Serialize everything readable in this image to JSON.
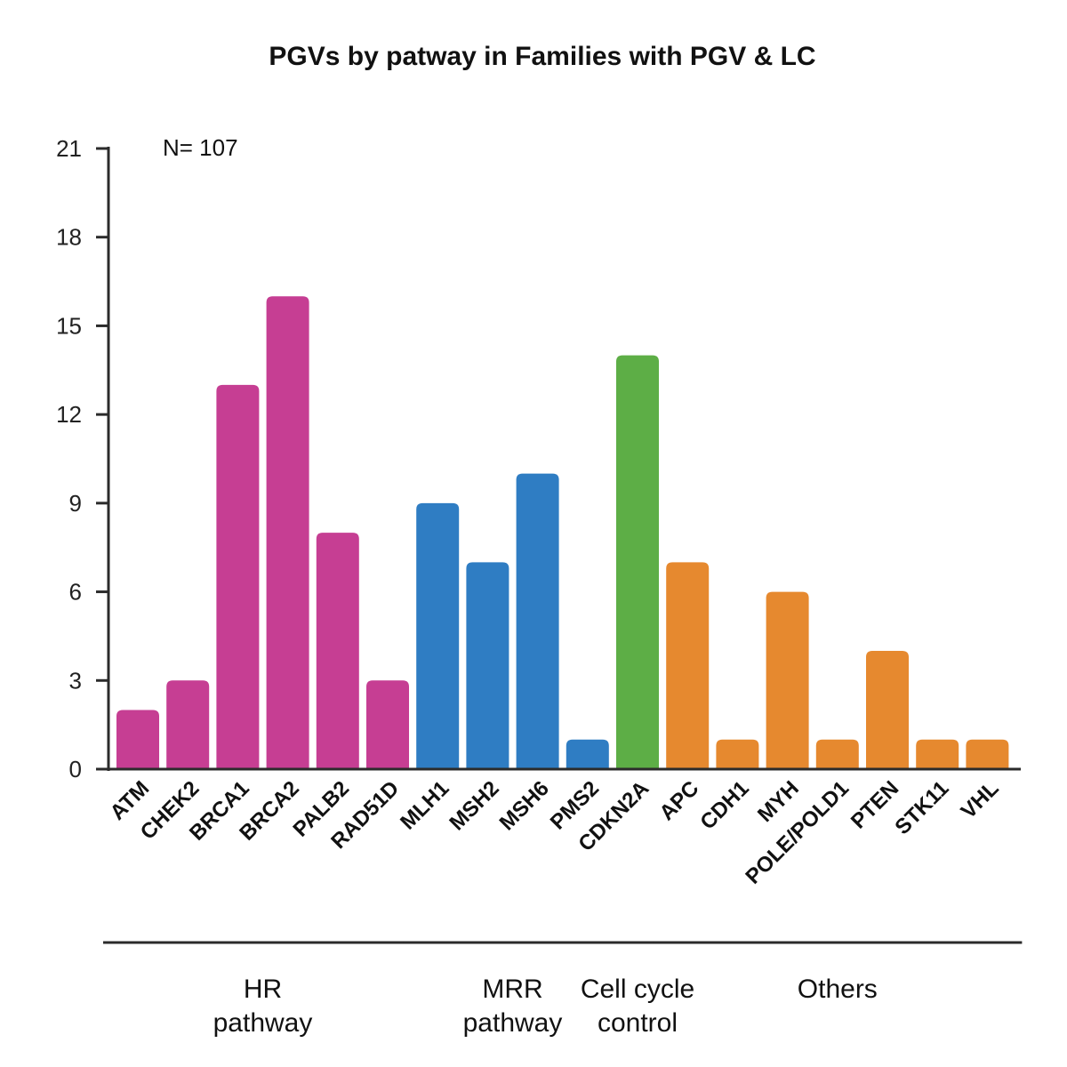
{
  "chart_data": {
    "type": "bar",
    "title": "PGVs by patway in Families with PGV & LC",
    "annotation": "N= 107",
    "xlabel": "",
    "ylabel": "",
    "ylim": [
      0,
      21
    ],
    "yticks": [
      0,
      3,
      6,
      9,
      12,
      15,
      18,
      21
    ],
    "grid": false,
    "categories": [
      "ATM",
      "CHEK2",
      "BRCA1",
      "BRCA2",
      "PALB2",
      "RAD51D",
      "MLH1",
      "MSH2",
      "MSH6",
      "PMS2",
      "CDKN2A",
      "APC",
      "CDH1",
      "MYH",
      "POLE/POLD1",
      "PTEN",
      "STK11",
      "VHL"
    ],
    "values": [
      2,
      3,
      13,
      16,
      8,
      3,
      9,
      7,
      10,
      1,
      14,
      7,
      1,
      6,
      1,
      4,
      1,
      1
    ],
    "groups": [
      {
        "label_lines": [
          "HR",
          "pathway"
        ],
        "start": 0,
        "end": 5,
        "color": "#C63E93"
      },
      {
        "label_lines": [
          "MRR",
          "pathway"
        ],
        "start": 6,
        "end": 9,
        "color": "#2F7DC3"
      },
      {
        "label_lines": [
          "Cell cycle",
          "control"
        ],
        "start": 10,
        "end": 10,
        "color": "#5DAE46"
      },
      {
        "label_lines": [
          "Others"
        ],
        "start": 11,
        "end": 17,
        "color": "#E6892F"
      }
    ]
  }
}
